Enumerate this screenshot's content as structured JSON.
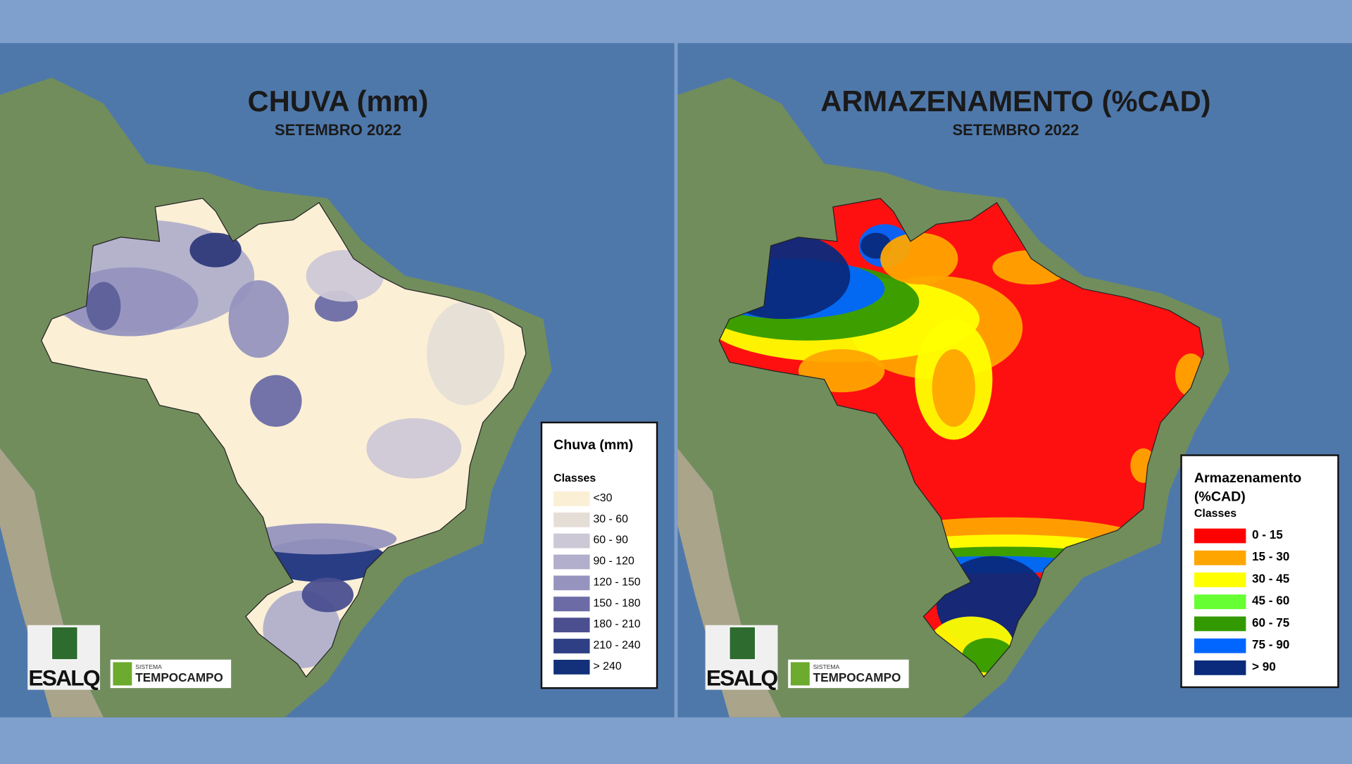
{
  "panels": [
    {
      "title": "CHUVA (mm)",
      "subtitle": "SETEMBRO 2022",
      "legend": {
        "title": [
          "Chuva (mm)"
        ],
        "subtitle": "Classes",
        "items": [
          {
            "label": "<30",
            "color": "#fbefd5"
          },
          {
            "label": "30 - 60",
            "color": "#e5ded7"
          },
          {
            "label": "60 - 90",
            "color": "#cdc8d6"
          },
          {
            "label": "90 - 120",
            "color": "#b1afcb"
          },
          {
            "label": "120 - 150",
            "color": "#9694bf"
          },
          {
            "label": "150 - 180",
            "color": "#6c6ba6"
          },
          {
            "label": "180 - 210",
            "color": "#4b4f90"
          },
          {
            "label": "210 - 240",
            "color": "#2f3f86"
          },
          {
            "label": "> 240",
            "color": "#13307a"
          }
        ]
      },
      "logos": {
        "esalq": "ESALQ",
        "sistema": "SISTEMA",
        "tempocampo": "TEMPOCAMPO"
      }
    },
    {
      "title": "ARMAZENAMENTO (%CAD)",
      "subtitle": "SETEMBRO 2022",
      "legend": {
        "title": [
          "Armazenamento",
          "(%CAD)"
        ],
        "subtitle": "Classes",
        "items": [
          {
            "label": "0 - 15",
            "color": "#ff0000"
          },
          {
            "label": "15 - 30",
            "color": "#ffa500"
          },
          {
            "label": "30 - 45",
            "color": "#ffff00"
          },
          {
            "label": "45 - 60",
            "color": "#66ff33"
          },
          {
            "label": "60 - 75",
            "color": "#339900"
          },
          {
            "label": "75 - 90",
            "color": "#0066ff"
          },
          {
            "label": "> 90",
            "color": "#0a2a7c"
          }
        ]
      },
      "logos": {
        "esalq": "ESALQ",
        "sistema": "SISTEMA",
        "tempocampo": "TEMPOCAMPO"
      }
    }
  ]
}
